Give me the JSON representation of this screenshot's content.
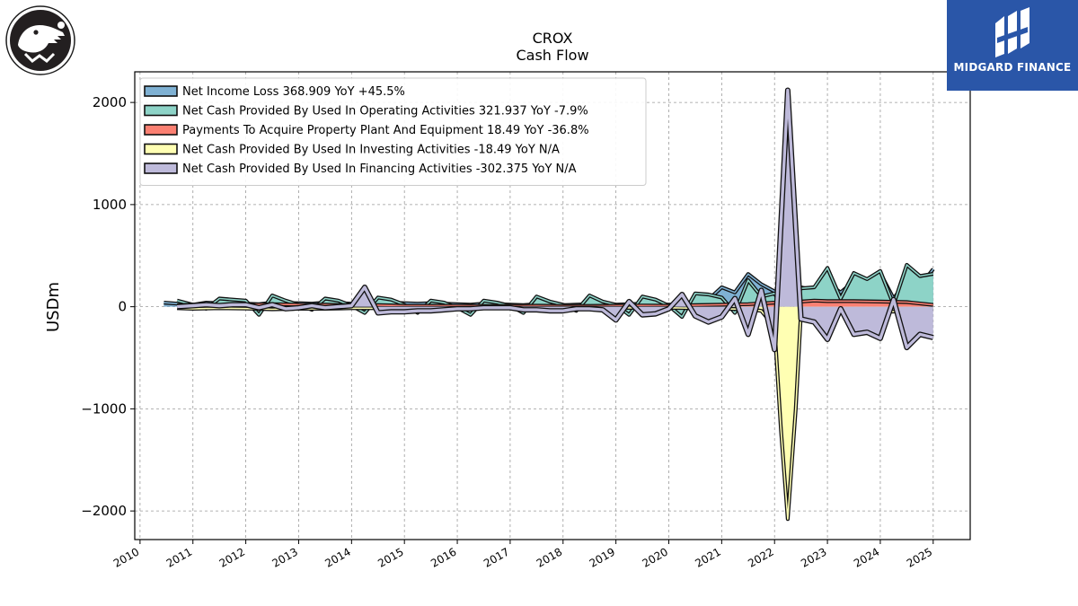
{
  "logos": {
    "left": {
      "icon": "crocodile-logo-icon"
    },
    "right": {
      "text": "MIDGARD FINANCE",
      "icon": "midgard-logo-icon",
      "background": "#2a56a8"
    }
  },
  "chart_data": {
    "type": "area",
    "title": "CROX",
    "subtitle": "Cash Flow",
    "xlabel": "",
    "ylabel": "USDm",
    "xlim": [
      2009.9,
      2025.7
    ],
    "ylim": [
      -2280,
      2300
    ],
    "x_ticks": [
      2010,
      2011,
      2012,
      2013,
      2014,
      2015,
      2016,
      2017,
      2018,
      2019,
      2020,
      2021,
      2022,
      2023,
      2024,
      2025
    ],
    "y_ticks": [
      -2000,
      -1000,
      0,
      1000,
      2000
    ],
    "y_tick_labels": [
      "−2000",
      "−1000",
      "0",
      "1000",
      "2000"
    ],
    "grid": true,
    "legend_position": "top-left",
    "series": [
      {
        "name": "Net Income Loss  368.909 YoY +45.5%",
        "color": "#7fb1d3",
        "x": [
          2010.45,
          2010.7,
          2011.0,
          2011.25,
          2011.5,
          2011.75,
          2012.0,
          2012.25,
          2012.5,
          2012.75,
          2013.0,
          2013.25,
          2013.5,
          2013.75,
          2014.0,
          2014.25,
          2014.5,
          2014.75,
          2015.0,
          2015.25,
          2015.5,
          2015.75,
          2016.0,
          2016.25,
          2016.5,
          2016.75,
          2017.0,
          2017.25,
          2017.5,
          2017.75,
          2018.0,
          2018.25,
          2018.5,
          2018.75,
          2019.0,
          2019.25,
          2019.5,
          2019.75,
          2020.0,
          2020.25,
          2020.5,
          2020.75,
          2021.0,
          2021.25,
          2021.5,
          2021.75,
          2022.0,
          2022.25,
          2022.5,
          2022.75,
          2023.0,
          2023.25,
          2023.5,
          2023.75,
          2024.0,
          2024.25,
          2024.5,
          2024.75,
          2025.0
        ],
        "values": [
          40,
          30,
          20,
          40,
          35,
          30,
          30,
          25,
          40,
          35,
          35,
          30,
          40,
          35,
          30,
          25,
          45,
          40,
          35,
          30,
          35,
          30,
          25,
          20,
          30,
          25,
          20,
          15,
          25,
          20,
          15,
          20,
          25,
          20,
          20,
          25,
          30,
          25,
          20,
          25,
          30,
          70,
          190,
          140,
          320,
          220,
          150,
          100,
          190,
          160,
          230,
          140,
          250,
          200,
          330,
          80,
          250,
          200,
          369
        ]
      },
      {
        "name": "Net Cash Provided By Used In Operating Activities  321.937 YoY -7.9%",
        "color": "#8dd3c7",
        "x": [
          2010.7,
          2011.0,
          2011.25,
          2011.5,
          2011.75,
          2012.0,
          2012.25,
          2012.5,
          2012.75,
          2013.0,
          2013.25,
          2013.5,
          2013.75,
          2014.0,
          2014.25,
          2014.5,
          2014.75,
          2015.0,
          2015.25,
          2015.5,
          2015.75,
          2016.0,
          2016.25,
          2016.5,
          2016.75,
          2017.0,
          2017.25,
          2017.5,
          2017.75,
          2018.0,
          2018.25,
          2018.5,
          2018.75,
          2019.0,
          2019.25,
          2019.5,
          2019.75,
          2020.0,
          2020.25,
          2020.5,
          2020.75,
          2021.0,
          2021.25,
          2021.5,
          2021.75,
          2022.0,
          2022.25,
          2022.5,
          2022.75,
          2023.0,
          2023.25,
          2023.5,
          2023.75,
          2024.0,
          2024.25,
          2024.5,
          2024.75,
          2025.0
        ],
        "values": [
          60,
          20,
          -20,
          80,
          70,
          60,
          -80,
          110,
          60,
          20,
          -30,
          80,
          60,
          10,
          -60,
          90,
          70,
          20,
          -60,
          60,
          40,
          -10,
          -80,
          60,
          40,
          10,
          -60,
          100,
          50,
          20,
          -40,
          110,
          50,
          20,
          -80,
          100,
          70,
          10,
          -100,
          130,
          120,
          90,
          -60,
          260,
          100,
          130,
          -90,
          180,
          190,
          380,
          80,
          330,
          270,
          350,
          20,
          410,
          300,
          322
        ]
      },
      {
        "name": "Payments To Acquire Property Plant And Equipment  18.49 YoY -36.8%",
        "color": "#fb8072",
        "x": [
          2010.7,
          2011.0,
          2011.5,
          2012.0,
          2012.5,
          2013.0,
          2013.5,
          2014.0,
          2014.5,
          2015.0,
          2015.5,
          2016.0,
          2016.5,
          2017.0,
          2017.5,
          2018.0,
          2018.5,
          2019.0,
          2019.5,
          2020.0,
          2020.5,
          2021.0,
          2021.5,
          2022.0,
          2022.25,
          2022.5,
          2022.75,
          2023.0,
          2023.5,
          2024.0,
          2024.5,
          2025.0
        ],
        "values": [
          15,
          20,
          15,
          18,
          25,
          20,
          20,
          15,
          15,
          10,
          10,
          10,
          8,
          8,
          10,
          8,
          8,
          10,
          12,
          10,
          15,
          20,
          25,
          40,
          60,
          50,
          60,
          55,
          55,
          50,
          45,
          18
        ]
      },
      {
        "name": "Net Cash Provided By Used In Investing Activities  -18.49 YoY N/A",
        "color": "#ffffb3",
        "x": [
          2010.7,
          2011.0,
          2011.5,
          2012.0,
          2012.5,
          2013.0,
          2013.5,
          2014.0,
          2014.5,
          2015.0,
          2015.5,
          2016.0,
          2016.5,
          2017.0,
          2017.5,
          2018.0,
          2018.5,
          2019.0,
          2019.5,
          2020.0,
          2020.5,
          2021.0,
          2021.5,
          2021.75,
          2022.0,
          2022.12,
          2022.25,
          2022.4,
          2022.5,
          2022.75,
          2023.0,
          2023.5,
          2024.0,
          2024.5,
          2025.0
        ],
        "values": [
          -15,
          -20,
          -15,
          -18,
          -25,
          -20,
          -20,
          -15,
          -15,
          -10,
          -10,
          -10,
          -8,
          -8,
          -10,
          -8,
          -8,
          -10,
          -12,
          -10,
          -15,
          -20,
          -25,
          -40,
          -200,
          -1200,
          -2080,
          -1000,
          -60,
          -60,
          -50,
          -50,
          -50,
          -45,
          -18
        ]
      },
      {
        "name": "Net Cash Provided By Used In Financing Activities  -302.375 YoY N/A",
        "color": "#bebada",
        "x": [
          2010.7,
          2011.0,
          2011.25,
          2011.5,
          2011.75,
          2012.0,
          2012.25,
          2012.5,
          2012.75,
          2013.0,
          2013.25,
          2013.5,
          2013.75,
          2014.0,
          2014.25,
          2014.5,
          2014.75,
          2015.0,
          2015.25,
          2015.5,
          2015.75,
          2016.0,
          2016.25,
          2016.5,
          2016.75,
          2017.0,
          2017.25,
          2017.5,
          2017.75,
          2018.0,
          2018.25,
          2018.5,
          2018.75,
          2019.0,
          2019.25,
          2019.5,
          2019.75,
          2020.0,
          2020.25,
          2020.5,
          2020.75,
          2021.0,
          2021.25,
          2021.5,
          2021.75,
          2022.0,
          2022.25,
          2022.5,
          2022.75,
          2023.0,
          2023.25,
          2023.5,
          2023.75,
          2024.0,
          2024.25,
          2024.5,
          2024.75,
          2025.0
        ],
        "values": [
          0,
          10,
          20,
          10,
          20,
          20,
          -10,
          20,
          -20,
          -10,
          10,
          -10,
          0,
          10,
          190,
          -60,
          -50,
          -50,
          -40,
          -40,
          -30,
          -20,
          -20,
          -10,
          -10,
          -10,
          -30,
          -30,
          -40,
          -40,
          -20,
          -20,
          -30,
          -130,
          50,
          -80,
          -70,
          -20,
          120,
          -90,
          -150,
          -100,
          80,
          -270,
          160,
          -420,
          2120,
          -120,
          -150,
          -320,
          -20,
          -270,
          -250,
          -310,
          70,
          -400,
          -270,
          -302
        ]
      }
    ]
  }
}
